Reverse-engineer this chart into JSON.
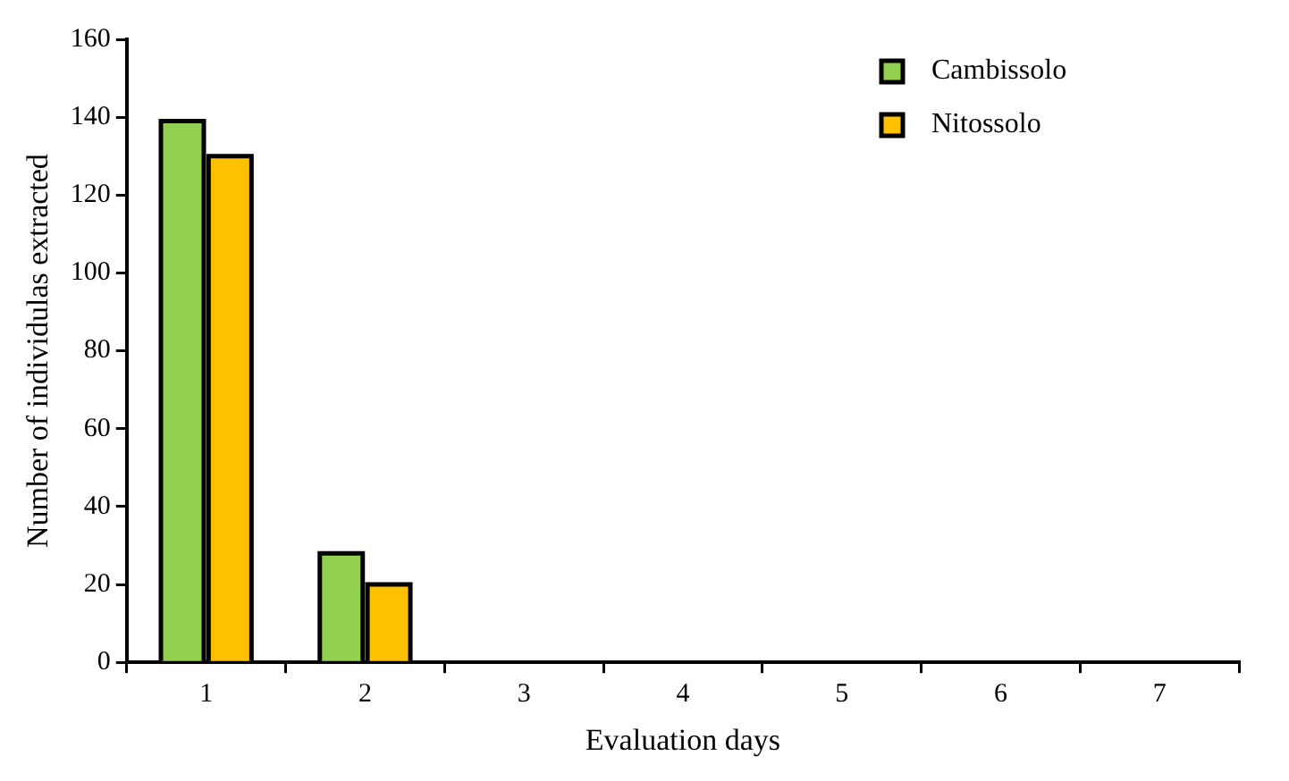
{
  "chart_data": {
    "type": "bar",
    "xlabel": "Evaluation days",
    "ylabel": "Number of individulas extracted",
    "categories": [
      "1",
      "2",
      "3",
      "4",
      "5",
      "6",
      "7"
    ],
    "series": [
      {
        "name": "Cambissolo",
        "color": "#92d050",
        "values": [
          139,
          28,
          0,
          0,
          0,
          0,
          0
        ]
      },
      {
        "name": "Nitossolo",
        "color": "#ffc000",
        "values": [
          130,
          20,
          0,
          0,
          0,
          0,
          0
        ]
      }
    ],
    "ylim": [
      0,
      160
    ],
    "yticks": [
      0,
      20,
      40,
      60,
      80,
      100,
      120,
      140,
      160
    ],
    "grid": false,
    "legend": "top right"
  }
}
